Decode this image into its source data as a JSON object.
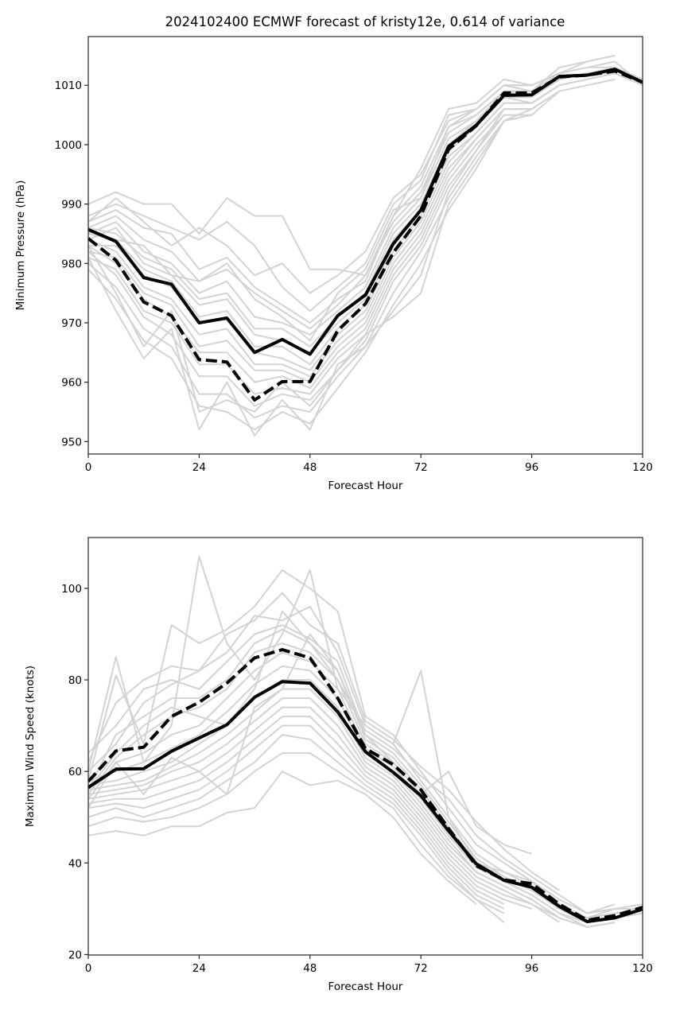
{
  "chart_data": [
    {
      "type": "line",
      "title": "2024102400 ECMWF forecast of kristy12e, 0.614 of variance",
      "xlabel": "Forecast Hour",
      "ylabel": "Minimum Pressure (hPa)",
      "xlim": [
        0,
        120
      ],
      "ylim": [
        947.9,
        1018.2
      ],
      "xticks": [
        0,
        24,
        48,
        72,
        96,
        120
      ],
      "yticks": [
        950,
        960,
        970,
        980,
        990,
        1000,
        1010
      ],
      "grid": false,
      "legend": "none",
      "x": [
        0,
        6,
        12,
        18,
        24,
        30,
        36,
        42,
        48,
        54,
        60,
        66,
        72,
        78,
        84,
        90,
        96,
        102,
        108,
        114,
        120
      ],
      "series": [
        {
          "name": "mean",
          "style": "solid",
          "color": "#000000",
          "values": [
            985.7,
            983.7,
            977.6,
            976.5,
            970.0,
            970.8,
            965.0,
            967.2,
            964.7,
            971.2,
            974.7,
            983.3,
            989.0,
            999.7,
            1003.3,
            1008.3,
            1008.4,
            1011.5,
            1011.7,
            1012.7,
            1010.5
          ]
        },
        {
          "name": "weighted",
          "style": "dashed",
          "color": "#000000",
          "values": [
            984.2,
            980.5,
            973.5,
            971.2,
            963.8,
            963.4,
            957.0,
            960.1,
            960.1,
            968.7,
            973.2,
            981.8,
            988.0,
            999.2,
            1003.2,
            1008.7,
            1008.7,
            1011.4,
            1011.7,
            1012.4,
            1010.5
          ]
        }
      ],
      "members_color": "#d3d3d3",
      "members": [
        [
          990,
          992,
          990,
          990,
          985,
          991,
          988,
          988,
          979,
          979,
          978,
          988,
          996,
          1006,
          1007,
          1011,
          1010,
          1012,
          1014,
          1015,
          null
        ],
        [
          988,
          990,
          988,
          986,
          984,
          987,
          983,
          976,
          972,
          976,
          980,
          990,
          994,
          1005,
          1006,
          1010,
          1009,
          1013,
          1014,
          null,
          null
        ],
        [
          987,
          989,
          986,
          985,
          979,
          981,
          976,
          973,
          970,
          974,
          977,
          988,
          993,
          1003,
          1006,
          1010,
          1010,
          1012,
          1013,
          1014,
          1010
        ],
        [
          986,
          988,
          984,
          982,
          977,
          979,
          975,
          972,
          969,
          973,
          978,
          987,
          992,
          1002,
          1005,
          1009,
          1009,
          1012,
          1013,
          1013,
          1011
        ],
        [
          985,
          987,
          982,
          980,
          975,
          977,
          971,
          970,
          968,
          972,
          976,
          986,
          991,
          1001,
          1004,
          1009,
          1008,
          1011,
          1012,
          1012,
          null
        ],
        [
          986,
          985,
          981,
          979,
          974,
          975,
          969,
          969,
          966,
          971,
          975,
          985,
          990,
          1000,
          1004,
          1008,
          1008,
          1011,
          1012,
          1013,
          1010
        ],
        [
          984,
          986,
          980,
          978,
          973,
          974,
          968,
          967,
          965,
          970,
          974,
          984,
          989,
          999,
          1003,
          1008,
          1008,
          1011,
          1012,
          1012,
          null
        ],
        [
          985,
          984,
          979,
          977,
          971,
          972,
          966,
          966,
          963,
          969,
          973,
          983,
          989,
          999,
          1003,
          1008,
          1007,
          1010,
          1011,
          null,
          null
        ],
        [
          983,
          983,
          978,
          976,
          970,
          971,
          965,
          964,
          962,
          968,
          972,
          982,
          988,
          998,
          1002,
          1007,
          1007,
          1010,
          1011,
          1012,
          1010
        ],
        [
          984,
          982,
          976,
          974,
          968,
          969,
          963,
          963,
          961,
          967,
          971,
          981,
          987,
          997,
          1002,
          1007,
          1007,
          1010,
          1011,
          null,
          null
        ],
        [
          982,
          981,
          975,
          973,
          966,
          967,
          962,
          962,
          960,
          966,
          970,
          980,
          986,
          996,
          1001,
          1006,
          1006,
          1009,
          1010,
          1011,
          null
        ],
        [
          983,
          980,
          974,
          971,
          965,
          965,
          960,
          961,
          959,
          965,
          969,
          979,
          985,
          995,
          1001,
          1006,
          1006,
          1009,
          null,
          null,
          null
        ],
        [
          981,
          979,
          972,
          970,
          963,
          963,
          958,
          959,
          958,
          964,
          968,
          978,
          984,
          994,
          1000,
          1005,
          1005,
          1009,
          null,
          null,
          null
        ],
        [
          982,
          978,
          971,
          968,
          961,
          961,
          956,
          958,
          957,
          962,
          967,
          977,
          983,
          993,
          999,
          1005,
          1005,
          null,
          null,
          null,
          null
        ],
        [
          980,
          976,
          969,
          966,
          958,
          958,
          954,
          956,
          955,
          961,
          966,
          975,
          982,
          991,
          998,
          1004,
          1005,
          null,
          null,
          null,
          null
        ],
        [
          979,
          974,
          967,
          964,
          956,
          955,
          952,
          955,
          953,
          959,
          965,
          973,
          980,
          989,
          996,
          1004,
          null,
          null,
          null,
          null,
          null
        ],
        [
          981,
          972,
          964,
          969,
          952,
          960,
          951,
          957,
          952,
          963,
          966,
          972,
          978,
          992,
          999,
          1006,
          null,
          null,
          null,
          null,
          null
        ],
        [
          983,
          975,
          966,
          972,
          955,
          957,
          955,
          960,
          956,
          962,
          968,
          971,
          975,
          990,
          997,
          1004,
          1006,
          null,
          null,
          null,
          null
        ],
        [
          987,
          991,
          987,
          983,
          986,
          983,
          978,
          980,
          975,
          978,
          982,
          991,
          995,
          1004,
          1006,
          1010,
          1010,
          null,
          null,
          null,
          null
        ],
        [
          985,
          984,
          983,
          978,
          977,
          980,
          974,
          971,
          967,
          975,
          979,
          989,
          991,
          1003,
          1005,
          1009,
          1009,
          null,
          null,
          null,
          null
        ]
      ]
    },
    {
      "type": "line",
      "title": "",
      "xlabel": "Forecast Hour",
      "ylabel": "Maximum Wind Speed (knots)",
      "xlim": [
        0,
        120
      ],
      "ylim": [
        19.9,
        111.1
      ],
      "xticks": [
        0,
        24,
        48,
        72,
        96,
        120
      ],
      "yticks": [
        20,
        40,
        60,
        80,
        100
      ],
      "grid": false,
      "legend": "none",
      "x": [
        0,
        6,
        12,
        18,
        24,
        30,
        36,
        42,
        48,
        54,
        60,
        66,
        72,
        78,
        84,
        90,
        96,
        102,
        108,
        114,
        120
      ],
      "series": [
        {
          "name": "mean",
          "style": "solid",
          "color": "#000000",
          "values": [
            56.5,
            60.5,
            60.6,
            64.4,
            67.3,
            70.2,
            76.2,
            79.6,
            79.3,
            73.0,
            64.3,
            59.8,
            54.7,
            47.0,
            39.8,
            36.2,
            34.7,
            30.5,
            27.2,
            28.0,
            29.9
          ]
        },
        {
          "name": "weighted",
          "style": "dashed",
          "color": "#000000",
          "values": [
            57.8,
            64.5,
            65.3,
            72.0,
            75.1,
            79.3,
            84.8,
            86.6,
            84.8,
            76.0,
            65.0,
            61.5,
            56.0,
            47.5,
            39.4,
            36.3,
            35.5,
            31.0,
            27.5,
            28.5,
            30.3
          ]
        }
      ],
      "members_color": "#d3d3d3",
      "members": [
        [
          60,
          85,
          62,
          70,
          107,
          88,
          80,
          90,
          104,
          78,
          70,
          66,
          82,
          50,
          40,
          38,
          36,
          30,
          28,
          30,
          31
        ],
        [
          58,
          81,
          66,
          92,
          88,
          91,
          96,
          104,
          100,
          95,
          72,
          68,
          60,
          52,
          44,
          40,
          36,
          32,
          29,
          31,
          null
        ],
        [
          62,
          75,
          80,
          83,
          82,
          86,
          94,
          93,
          96,
          86,
          70,
          66,
          58,
          50,
          42,
          38,
          35,
          31,
          28,
          29,
          30
        ],
        [
          64,
          70,
          78,
          80,
          78,
          84,
          90,
          92,
          89,
          84,
          68,
          64,
          57,
          49,
          41,
          37,
          34,
          30,
          27,
          28,
          29
        ],
        [
          56,
          68,
          72,
          76,
          76,
          80,
          88,
          91,
          88,
          82,
          67,
          63,
          56,
          48,
          40,
          37,
          34,
          30,
          27,
          28,
          null
        ],
        [
          55,
          63,
          68,
          72,
          74,
          78,
          86,
          88,
          86,
          80,
          66,
          62,
          55,
          47,
          40,
          36,
          33,
          29,
          27,
          28,
          29
        ],
        [
          54,
          62,
          64,
          68,
          70,
          76,
          82,
          86,
          84,
          78,
          65,
          61,
          54,
          46,
          39,
          36,
          33,
          29,
          26,
          27,
          null
        ],
        [
          58,
          60,
          62,
          65,
          68,
          73,
          79,
          83,
          82,
          76,
          64,
          60,
          53,
          45,
          38,
          35,
          32,
          28,
          26,
          27,
          null
        ],
        [
          57,
          58,
          60,
          62,
          66,
          70,
          76,
          80,
          80,
          74,
          63,
          59,
          52,
          44,
          38,
          35,
          32,
          28,
          26,
          null,
          null
        ],
        [
          56,
          57,
          58,
          61,
          64,
          68,
          73,
          78,
          78,
          72,
          62,
          58,
          51,
          43,
          37,
          34,
          31,
          28,
          null,
          null,
          null
        ],
        [
          55,
          56,
          57,
          60,
          62,
          66,
          71,
          76,
          76,
          70,
          61,
          57,
          50,
          42,
          36,
          33,
          31,
          27,
          null,
          null,
          null
        ],
        [
          54,
          55,
          56,
          58,
          60,
          64,
          69,
          74,
          74,
          68,
          60,
          56,
          49,
          41,
          35,
          32,
          30,
          null,
          null,
          null,
          null
        ],
        [
          53,
          54,
          54,
          56,
          58,
          62,
          67,
          72,
          72,
          66,
          59,
          55,
          48,
          40,
          34,
          31,
          null,
          null,
          null,
          null,
          null
        ],
        [
          52,
          53,
          52,
          54,
          56,
          60,
          65,
          70,
          70,
          64,
          58,
          54,
          47,
          39,
          33,
          30,
          null,
          null,
          null,
          null,
          null
        ],
        [
          50,
          52,
          50,
          52,
          54,
          58,
          62,
          68,
          67,
          62,
          57,
          53,
          46,
          38,
          32,
          29,
          null,
          null,
          null,
          null,
          null
        ],
        [
          48,
          50,
          49,
          50,
          52,
          55,
          60,
          64,
          64,
          60,
          56,
          52,
          44,
          37,
          32,
          27,
          null,
          null,
          null,
          null,
          null
        ],
        [
          46,
          47,
          46,
          48,
          48,
          51,
          52,
          60,
          57,
          58,
          55,
          50,
          42,
          36,
          31,
          null,
          null,
          null,
          null,
          null,
          null
        ],
        [
          52,
          62,
          55,
          63,
          60,
          55,
          74,
          78,
          90,
          82,
          68,
          62,
          55,
          60,
          48,
          44,
          42,
          null,
          null,
          null,
          null
        ],
        [
          60,
          66,
          75,
          79,
          82,
          90,
          93,
          99,
          92,
          88,
          71,
          67,
          61,
          56,
          49,
          43,
          38,
          34,
          null,
          null,
          null
        ],
        [
          56,
          64,
          70,
          74,
          72,
          70,
          78,
          95,
          88,
          80,
          69,
          65,
          59,
          54,
          46,
          41,
          37,
          33,
          29,
          30,
          30
        ]
      ]
    }
  ]
}
